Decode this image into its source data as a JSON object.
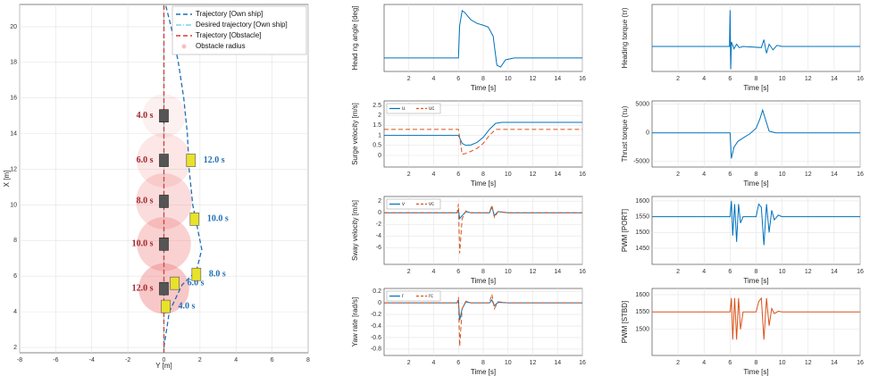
{
  "chart_data": [
    {
      "type": "trajectory",
      "xlabel": "Y [m]",
      "ylabel": "X [m]",
      "xlim": [
        -8,
        8
      ],
      "ylim": [
        1.7,
        21.25
      ],
      "xticks": [
        -8,
        -6,
        -4,
        -2,
        0,
        2,
        4,
        6,
        8
      ],
      "yticks": [
        2,
        4,
        6,
        8,
        10,
        12,
        14,
        16,
        18,
        20
      ],
      "grid": true,
      "legend": "upper right",
      "series": [
        {
          "name": "Trajectory [Own ship]",
          "color": "#1f6fb4",
          "style": "dashed",
          "x": [
            0,
            0.3,
            1,
            1.8,
            2.1,
            1.9,
            1.6,
            1.4,
            1.3,
            1.1,
            0.8,
            0.4,
            0.1
          ],
          "values": [
            2,
            4,
            5.5,
            6.3,
            7.5,
            8.5,
            10,
            12,
            14,
            16,
            18,
            20,
            21.2
          ]
        },
        {
          "name": "Desired trajectory [Own ship]",
          "color": "#7fd3e8",
          "style": "dashdot",
          "x": [
            0,
            0
          ],
          "values": [
            1.7,
            21.25
          ]
        },
        {
          "name": "Trajectory [Obstacle]",
          "color": "#e03c31",
          "style": "dashed",
          "x": [
            0,
            0
          ],
          "values": [
            1.7,
            21.25
          ]
        }
      ],
      "circles": {
        "name": "Obstacle radius",
        "color": "#f08080",
        "x": [
          0,
          0,
          0,
          0,
          0
        ],
        "values": [
          15,
          12.5,
          10.2,
          7.8,
          5.3
        ],
        "radius": [
          1.2,
          1.5,
          1.55,
          1.5,
          1.4
        ],
        "labels": [
          "4.0 s",
          "6.0 s",
          "8.0 s",
          "10.0 s",
          "12.0 s"
        ]
      },
      "own_ship": {
        "color": "#e8e22a",
        "x": [
          0.1,
          0.6,
          1.8,
          1.7,
          1.5
        ],
        "values": [
          4.3,
          5.6,
          6.1,
          9.2,
          12.5
        ],
        "labels": [
          "4.0 s",
          "6.0 s",
          "8.0 s",
          "10.0 s",
          "12.0 s"
        ]
      }
    },
    {
      "type": "line",
      "ylabel": "Head ng angle [deg]",
      "xlabel": "Time [s]",
      "xlim": [
        0,
        16
      ],
      "xticks": [
        2,
        4,
        6,
        8,
        10,
        12,
        14,
        16
      ],
      "ylim": [
        -37,
        147
      ],
      "grid": true,
      "x": [
        0,
        6,
        6.1,
        6.3,
        6.5,
        7,
        7.5,
        8,
        8.4,
        8.8,
        9.1,
        9.4,
        9.8,
        10.5,
        16
      ],
      "series": [
        {
          "color": "#0072bd",
          "values": [
            0,
            0,
            90,
            130,
            125,
            105,
            95,
            90,
            85,
            60,
            -20,
            -25,
            -5,
            0,
            0
          ]
        }
      ]
    },
    {
      "type": "line",
      "ylabel": "Surge velocity [m/s]",
      "xlabel": "Time [s]",
      "xlim": [
        0,
        16
      ],
      "xticks": [
        2,
        4,
        6,
        8,
        10,
        12,
        14,
        16
      ],
      "ylim": [
        -0.58,
        2.72
      ],
      "yticks": [
        0,
        0.5,
        1,
        1.5,
        2,
        2.5
      ],
      "grid": true,
      "legend": "upper left",
      "x": [
        0,
        6,
        6.3,
        6.6,
        7,
        7.5,
        8,
        8.5,
        9,
        9.5,
        10,
        16
      ],
      "series": [
        {
          "name": "u",
          "color": "#0072bd",
          "style": "solid",
          "values": [
            1,
            1,
            0.6,
            0.5,
            0.52,
            0.65,
            0.9,
            1.3,
            1.6,
            1.65,
            1.65,
            1.65
          ]
        },
        {
          "name": "uc",
          "color": "#d95319",
          "style": "dashed",
          "values": [
            1.3,
            1.3,
            0.05,
            0.1,
            0.2,
            0.35,
            0.6,
            1.0,
            1.3,
            1.3,
            1.3,
            1.3
          ]
        }
      ]
    },
    {
      "type": "line",
      "ylabel": "Sway velocity [m/s]",
      "xlabel": "Time [s]",
      "xlim": [
        0,
        16
      ],
      "xticks": [
        2,
        4,
        6,
        8,
        10,
        12,
        14,
        16
      ],
      "ylim": [
        -8.9,
        2.8
      ],
      "yticks": [
        -6,
        -4,
        -2,
        0,
        2
      ],
      "grid": true,
      "legend": "upper left",
      "x": [
        0,
        5.9,
        6,
        6.1,
        6.3,
        6.6,
        7,
        8.5,
        8.7,
        8.9,
        9.2,
        10,
        16
      ],
      "series": [
        {
          "name": "v",
          "color": "#0072bd",
          "style": "solid",
          "values": [
            0,
            0,
            0.5,
            -1,
            -0.5,
            0.2,
            0,
            0,
            1,
            -0.5,
            0.2,
            0,
            0
          ]
        },
        {
          "name": "vc",
          "color": "#d95319",
          "style": "dashed",
          "values": [
            0,
            0,
            1.5,
            -7,
            -1,
            0.3,
            0,
            0,
            1.3,
            -0.8,
            0.2,
            0,
            0
          ]
        }
      ]
    },
    {
      "type": "line",
      "ylabel": "Yaw rate [rad/s]",
      "xlabel": "Time [s]",
      "xlim": [
        0,
        16
      ],
      "xticks": [
        2,
        4,
        6,
        8,
        10,
        12,
        14,
        16
      ],
      "ylim": [
        -0.91,
        0.25
      ],
      "yticks": [
        -0.8,
        -0.6,
        -0.4,
        -0.2,
        0,
        0.2
      ],
      "grid": true,
      "legend": "upper left",
      "x": [
        0,
        5.9,
        6,
        6.1,
        6.3,
        6.6,
        7,
        8.5,
        8.7,
        8.9,
        9.2,
        10,
        16
      ],
      "series": [
        {
          "name": "r",
          "color": "#0072bd",
          "style": "solid",
          "values": [
            0,
            0,
            0.05,
            -0.3,
            -0.1,
            0.02,
            0,
            0,
            0.05,
            -0.05,
            0.01,
            0,
            0
          ]
        },
        {
          "name": "rc",
          "color": "#d95319",
          "style": "dashed",
          "values": [
            0,
            0,
            0.1,
            -0.75,
            -0.1,
            0.03,
            0,
            0,
            0.15,
            -0.1,
            0.02,
            0,
            0
          ]
        }
      ]
    },
    {
      "type": "line",
      "ylabel": "Heading torque (τr)",
      "xlabel": "Time [s]",
      "xlim": [
        0,
        16
      ],
      "xticks": [
        2,
        4,
        6,
        8,
        10,
        12,
        14,
        16
      ],
      "ylim": [
        -1.1,
        1.85
      ],
      "grid": true,
      "x": [
        0,
        5.95,
        6,
        6.05,
        6.1,
        6.3,
        6.5,
        6.7,
        7,
        8.4,
        8.6,
        8.8,
        9,
        9.3,
        9.6,
        10,
        16
      ],
      "series": [
        {
          "color": "#0072bd",
          "values": [
            0,
            0,
            1.6,
            -1,
            0.2,
            -0.1,
            0.1,
            -0.05,
            0,
            -0.05,
            0.3,
            -0.3,
            0.1,
            -0.15,
            0.05,
            0,
            0
          ]
        }
      ]
    },
    {
      "type": "line",
      "ylabel": "Thrust torque (τu)",
      "xlabel": "Time [s]",
      "xlim": [
        0,
        16
      ],
      "xticks": [
        2,
        4,
        6,
        8,
        10,
        12,
        14,
        16
      ],
      "ylim": [
        -6000,
        5600
      ],
      "yticks": [
        -5000,
        0,
        5000
      ],
      "grid": true,
      "x": [
        0,
        6,
        6.1,
        6.3,
        6.6,
        7,
        7.5,
        8,
        8.3,
        8.5,
        8.7,
        9,
        9.5,
        16
      ],
      "series": [
        {
          "color": "#0072bd",
          "values": [
            0,
            0,
            -4500,
            -2500,
            -1500,
            -900,
            -200,
            800,
            2500,
            4000,
            2500,
            300,
            0,
            0
          ]
        }
      ]
    },
    {
      "type": "line",
      "ylabel": "PWM [PORT]",
      "xlabel": "Time [s]",
      "xlim": [
        0,
        16
      ],
      "xticks": [
        2,
        4,
        6,
        8,
        10,
        12,
        14,
        16
      ],
      "ylim": [
        1399,
        1614
      ],
      "yticks": [
        1450,
        1500,
        1550,
        1600
      ],
      "grid": true,
      "x": [
        0,
        6,
        6.1,
        6.2,
        6.35,
        6.5,
        6.65,
        6.8,
        7,
        8,
        8.2,
        8.4,
        8.6,
        8.8,
        9,
        9.2,
        9.4,
        9.7,
        10,
        16
      ],
      "series": [
        {
          "color": "#0072bd",
          "values": [
            1550,
            1550,
            1600,
            1490,
            1590,
            1470,
            1590,
            1530,
            1550,
            1550,
            1590,
            1580,
            1460,
            1590,
            1500,
            1570,
            1540,
            1555,
            1550,
            1550
          ]
        }
      ]
    },
    {
      "type": "line",
      "ylabel": "PWM [STBD]",
      "xlabel": "Time [s]",
      "xlim": [
        0,
        16
      ],
      "xticks": [
        2,
        4,
        6,
        8,
        10,
        12,
        14,
        16
      ],
      "ylim": [
        1424,
        1618
      ],
      "yticks": [
        1500,
        1550,
        1600
      ],
      "grid": true,
      "x": [
        0,
        6,
        6.1,
        6.2,
        6.35,
        6.5,
        6.65,
        6.8,
        7,
        8,
        8.2,
        8.4,
        8.6,
        8.8,
        9,
        9.2,
        9.4,
        9.7,
        10,
        16
      ],
      "series": [
        {
          "color": "#d95319",
          "values": [
            1550,
            1550,
            1590,
            1470,
            1590,
            1470,
            1590,
            1500,
            1550,
            1550,
            1580,
            1590,
            1470,
            1590,
            1510,
            1560,
            1545,
            1552,
            1550,
            1550
          ]
        }
      ]
    }
  ]
}
